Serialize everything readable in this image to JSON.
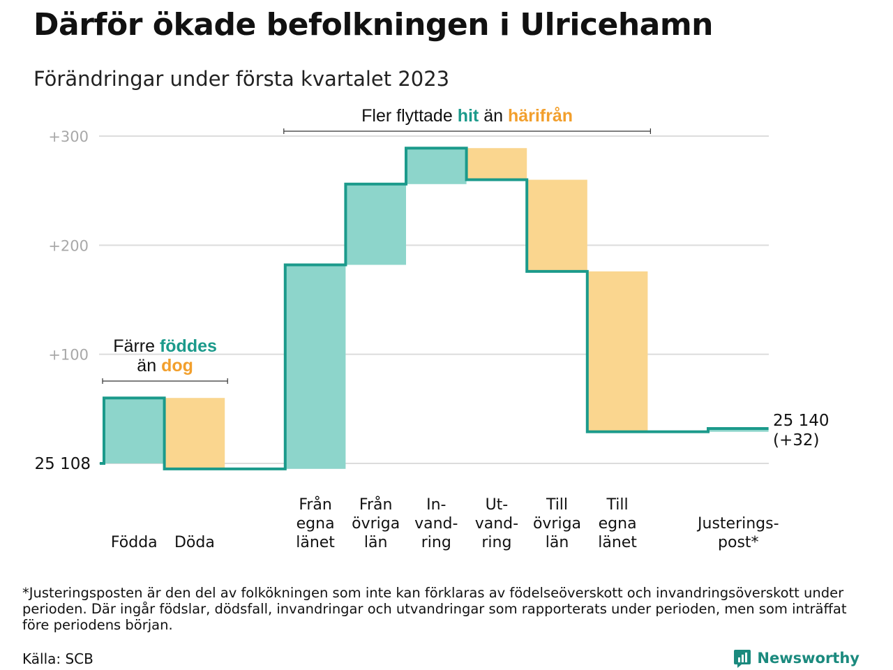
{
  "title": "Därför ökade befolkningen i Ulricehamn",
  "subtitle": "Förändringar under första kvartalet 2023",
  "colors": {
    "teal": "#1b9a8b",
    "teal_fill": "#8dd5cb",
    "orange": "#f29f2c",
    "orange_fill": "#fad68f",
    "grid": "#dcdcdc",
    "tick_text": "#a8a8a8"
  },
  "chart_data": {
    "type": "waterfall",
    "start_value_label": "25 108",
    "end_value_label": "25 140",
    "end_change_label": "(+32)",
    "y_tick_labels": [
      "+100",
      "+200",
      "+300"
    ],
    "y_ticks": [
      100,
      200,
      300
    ],
    "ylim": [
      -12,
      310
    ],
    "grid": true,
    "steps": [
      {
        "label": [
          "Födda"
        ],
        "from": 0,
        "to": 60,
        "kind": "gain"
      },
      {
        "label": [
          "Döda"
        ],
        "from": 60,
        "to": -5,
        "kind": "loss"
      },
      {
        "label": [],
        "from": -5,
        "to": -5,
        "kind": "gap"
      },
      {
        "label": [
          "Från",
          "egna",
          "länet"
        ],
        "from": -5,
        "to": 182,
        "kind": "gain"
      },
      {
        "label": [
          "Från",
          "övriga",
          "län"
        ],
        "from": 182,
        "to": 256,
        "kind": "gain"
      },
      {
        "label": [
          "In-",
          "vand-",
          "ring"
        ],
        "from": 256,
        "to": 289,
        "kind": "gain"
      },
      {
        "label": [
          "Ut-",
          "vand-",
          "ring"
        ],
        "from": 289,
        "to": 260,
        "kind": "loss"
      },
      {
        "label": [
          "Till",
          "övriga",
          "län"
        ],
        "from": 260,
        "to": 176,
        "kind": "loss"
      },
      {
        "label": [
          "Till",
          "egna",
          "länet"
        ],
        "from": 176,
        "to": 29,
        "kind": "loss"
      },
      {
        "label": [],
        "from": 29,
        "to": 29,
        "kind": "gap"
      },
      {
        "label": [
          "Justerings-",
          "post*"
        ],
        "from": 29,
        "to": 32,
        "kind": "gain"
      }
    ],
    "annotations": [
      {
        "lines": [
          [
            {
              "text": "Färre ",
              "style": "normal"
            },
            {
              "text": "föddes",
              "style": "teal"
            }
          ],
          [
            {
              "text": "än ",
              "style": "normal"
            },
            {
              "text": "dog",
              "style": "orange"
            }
          ]
        ],
        "bracket_steps": [
          0,
          1
        ]
      },
      {
        "lines": [
          [
            {
              "text": "Fler flyttade ",
              "style": "normal"
            },
            {
              "text": "hit",
              "style": "teal"
            },
            {
              "text": " än ",
              "style": "normal"
            },
            {
              "text": "härifrån",
              "style": "orange"
            }
          ]
        ],
        "bracket_steps": [
          3,
          8
        ]
      }
    ]
  },
  "footnote": "*Justeringsposten är den del av folkökningen som inte kan förklaras av födelseöverskott och invandringsöverskott under perioden. Där ingår födslar, dödsfall, invandringar och utvandringar som rapporterats under perioden, men som inträffat före periodens början.",
  "source": "Källa: SCB",
  "brand": "Newsworthy",
  "brand_icon": "newsworthy-logo-icon"
}
